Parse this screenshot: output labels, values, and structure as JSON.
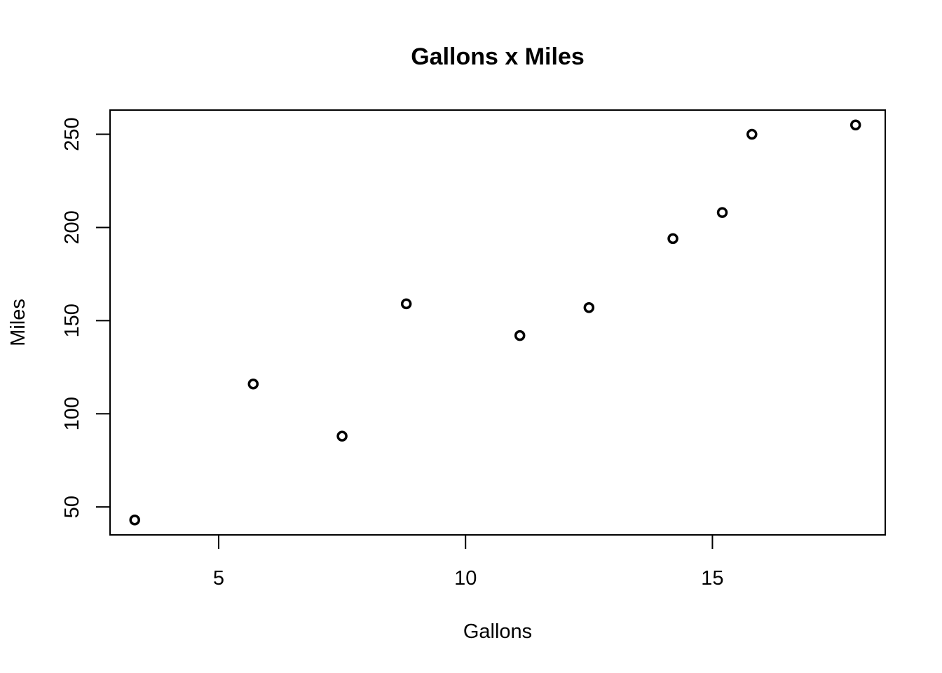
{
  "chart_data": {
    "type": "scatter",
    "title": "Gallons x Miles",
    "xlabel": "Gallons",
    "ylabel": "Miles",
    "xlim": [
      2.8,
      18.5
    ],
    "ylim": [
      35,
      263
    ],
    "xticks": [
      5,
      10,
      15
    ],
    "yticks": [
      50,
      100,
      150,
      200,
      250
    ],
    "grid": false,
    "legend": "none",
    "point_style": "open-circle",
    "color": "#000000",
    "x": [
      3.3,
      5.7,
      7.5,
      8.8,
      11.1,
      12.5,
      14.2,
      15.2,
      15.8,
      17.9
    ],
    "y": [
      43,
      116,
      88,
      159,
      142,
      157,
      194,
      208,
      250,
      255
    ]
  }
}
